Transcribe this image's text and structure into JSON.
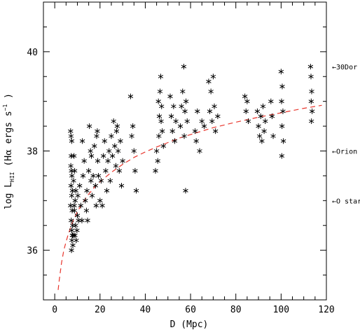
{
  "chart_data": {
    "type": "scatter",
    "title": "",
    "xlabel": "D (Mpc)",
    "ylabel_parts": {
      "main": "log L",
      "sub": "HII",
      "paren_open": " (H",
      "alpha": "α",
      "unit": " ergs s",
      "sup": "−1",
      "paren_close": " )"
    },
    "xlim": [
      -5,
      120
    ],
    "ylim": [
      35,
      41
    ],
    "xticks": [
      0,
      20,
      40,
      60,
      80,
      100,
      120
    ],
    "yticks": [
      36,
      38,
      40
    ],
    "grid": false,
    "marker": "asterisk",
    "reference_lines": [
      {
        "label": "30Dor",
        "y": 39.7,
        "arrow": "←"
      },
      {
        "label": "Orion",
        "y": 38.0,
        "arrow": "←"
      },
      {
        "label": "O star",
        "y": 37.0,
        "arrow": "←"
      }
    ],
    "completeness_curve": {
      "style": "dashed",
      "color": "#e8352c",
      "x": [
        1.5,
        2,
        3,
        4,
        5,
        6,
        8,
        10,
        12,
        15,
        18,
        20,
        25,
        30,
        35,
        40,
        45,
        50,
        55,
        60,
        70,
        80,
        90,
        100,
        110,
        118
      ],
      "y": [
        35.2,
        35.4,
        35.75,
        36.0,
        36.17,
        36.33,
        36.58,
        36.78,
        36.93,
        37.13,
        37.29,
        37.38,
        37.57,
        37.73,
        37.87,
        37.98,
        38.08,
        38.17,
        38.26,
        38.33,
        38.47,
        38.58,
        38.68,
        38.77,
        38.86,
        38.92
      ]
    },
    "points": [
      [
        7.0,
        38.4
      ],
      [
        7.2,
        38.3
      ],
      [
        7.5,
        38.2
      ],
      [
        7.3,
        37.9
      ],
      [
        7.1,
        37.7
      ],
      [
        7.4,
        37.6
      ],
      [
        7.6,
        37.5
      ],
      [
        7.2,
        37.3
      ],
      [
        7.8,
        37.2
      ],
      [
        7.5,
        37.1
      ],
      [
        7.0,
        36.9
      ],
      [
        7.7,
        36.8
      ],
      [
        7.3,
        36.6
      ],
      [
        7.9,
        36.5
      ],
      [
        7.5,
        36.4
      ],
      [
        7.8,
        36.3
      ],
      [
        7.6,
        36.2
      ],
      [
        8.0,
        36.1
      ],
      [
        7.4,
        36.0
      ],
      [
        8.2,
        36.3
      ],
      [
        8.5,
        37.9
      ],
      [
        8.8,
        37.6
      ],
      [
        8.3,
        37.4
      ],
      [
        9.0,
        37.0
      ],
      [
        8.7,
        36.8
      ],
      [
        9.2,
        36.5
      ],
      [
        8.9,
        36.3
      ],
      [
        9.5,
        36.2
      ],
      [
        9.3,
        37.2
      ],
      [
        8.6,
        36.9
      ],
      [
        10.0,
        36.7
      ],
      [
        9.8,
        36.4
      ],
      [
        10.2,
        37.1
      ],
      [
        10.5,
        36.6
      ],
      [
        11.0,
        37.3
      ],
      [
        11.5,
        36.9
      ],
      [
        12.0,
        36.6
      ],
      [
        12.2,
        38.2
      ],
      [
        12.5,
        37.5
      ],
      [
        13.0,
        37.8
      ],
      [
        13.5,
        37.0
      ],
      [
        14.0,
        36.8
      ],
      [
        14.2,
        37.2
      ],
      [
        14.5,
        36.6
      ],
      [
        15.0,
        37.6
      ],
      [
        15.3,
        38.5
      ],
      [
        15.8,
        38.0
      ],
      [
        16.0,
        37.4
      ],
      [
        16.2,
        37.9
      ],
      [
        16.5,
        37.1
      ],
      [
        17.0,
        37.5
      ],
      [
        17.5,
        38.1
      ],
      [
        18.0,
        37.3
      ],
      [
        18.3,
        36.9
      ],
      [
        18.5,
        38.3
      ],
      [
        18.8,
        38.4
      ],
      [
        19.0,
        37.8
      ],
      [
        19.3,
        37.5
      ],
      [
        20.0,
        37.0
      ],
      [
        20.5,
        37.4
      ],
      [
        21.0,
        36.9
      ],
      [
        21.5,
        37.9
      ],
      [
        22.0,
        38.2
      ],
      [
        22.5,
        37.6
      ],
      [
        23.0,
        37.2
      ],
      [
        23.5,
        37.8
      ],
      [
        24.0,
        38.0
      ],
      [
        24.5,
        37.4
      ],
      [
        25.0,
        38.3
      ],
      [
        25.5,
        37.9
      ],
      [
        26.0,
        38.6
      ],
      [
        26.5,
        38.1
      ],
      [
        27.0,
        37.7
      ],
      [
        27.3,
        38.4
      ],
      [
        27.6,
        38.5
      ],
      [
        28.0,
        38.0
      ],
      [
        28.5,
        37.6
      ],
      [
        29.0,
        38.2
      ],
      [
        29.5,
        37.3
      ],
      [
        30.0,
        37.8
      ],
      [
        33.5,
        39.1
      ],
      [
        34.0,
        38.3
      ],
      [
        34.5,
        38.5
      ],
      [
        35.0,
        38.0
      ],
      [
        35.5,
        37.6
      ],
      [
        36.0,
        37.2
      ],
      [
        45.0,
        38.0
      ],
      [
        45.5,
        37.8
      ],
      [
        46.0,
        38.3
      ],
      [
        46.2,
        38.7
      ],
      [
        46.5,
        39.2
      ],
      [
        46.8,
        39.5
      ],
      [
        47.0,
        38.6
      ],
      [
        47.2,
        38.9
      ],
      [
        47.5,
        38.4
      ],
      [
        48.0,
        38.1
      ],
      [
        44.5,
        37.6
      ],
      [
        45.8,
        39.0
      ],
      [
        51.0,
        39.1
      ],
      [
        51.5,
        38.7
      ],
      [
        52.0,
        38.4
      ],
      [
        52.5,
        38.9
      ],
      [
        53.0,
        38.2
      ],
      [
        53.5,
        38.6
      ],
      [
        55.5,
        38.5
      ],
      [
        56.0,
        38.9
      ],
      [
        56.5,
        39.2
      ],
      [
        57.0,
        39.7
      ],
      [
        57.2,
        38.3
      ],
      [
        57.5,
        38.8
      ],
      [
        58.0,
        39.0
      ],
      [
        58.5,
        38.6
      ],
      [
        57.8,
        37.2
      ],
      [
        62.0,
        38.4
      ],
      [
        62.5,
        38.2
      ],
      [
        63.0,
        38.8
      ],
      [
        64.0,
        38.0
      ],
      [
        65.0,
        38.6
      ],
      [
        66.0,
        38.5
      ],
      [
        68.0,
        39.4
      ],
      [
        68.5,
        38.8
      ],
      [
        69.0,
        39.2
      ],
      [
        69.5,
        38.6
      ],
      [
        70.0,
        39.5
      ],
      [
        70.5,
        38.9
      ],
      [
        71.0,
        38.4
      ],
      [
        72.0,
        38.7
      ],
      [
        84.0,
        39.1
      ],
      [
        84.5,
        38.8
      ],
      [
        85.0,
        39.0
      ],
      [
        85.5,
        38.6
      ],
      [
        89.5,
        38.8
      ],
      [
        90.0,
        38.5
      ],
      [
        90.5,
        38.3
      ],
      [
        91.0,
        38.7
      ],
      [
        91.5,
        38.2
      ],
      [
        92.0,
        38.9
      ],
      [
        92.5,
        38.4
      ],
      [
        93.0,
        38.6
      ],
      [
        95.5,
        39.0
      ],
      [
        96.0,
        38.7
      ],
      [
        96.5,
        38.3
      ],
      [
        100.0,
        39.6
      ],
      [
        100.5,
        39.3
      ],
      [
        100.2,
        39.0
      ],
      [
        100.8,
        38.8
      ],
      [
        100.4,
        38.5
      ],
      [
        101.0,
        38.2
      ],
      [
        100.3,
        37.9
      ],
      [
        113.0,
        39.7
      ],
      [
        113.2,
        39.5
      ],
      [
        113.5,
        39.2
      ],
      [
        113.3,
        39.0
      ],
      [
        113.7,
        38.8
      ],
      [
        113.4,
        38.6
      ]
    ]
  }
}
